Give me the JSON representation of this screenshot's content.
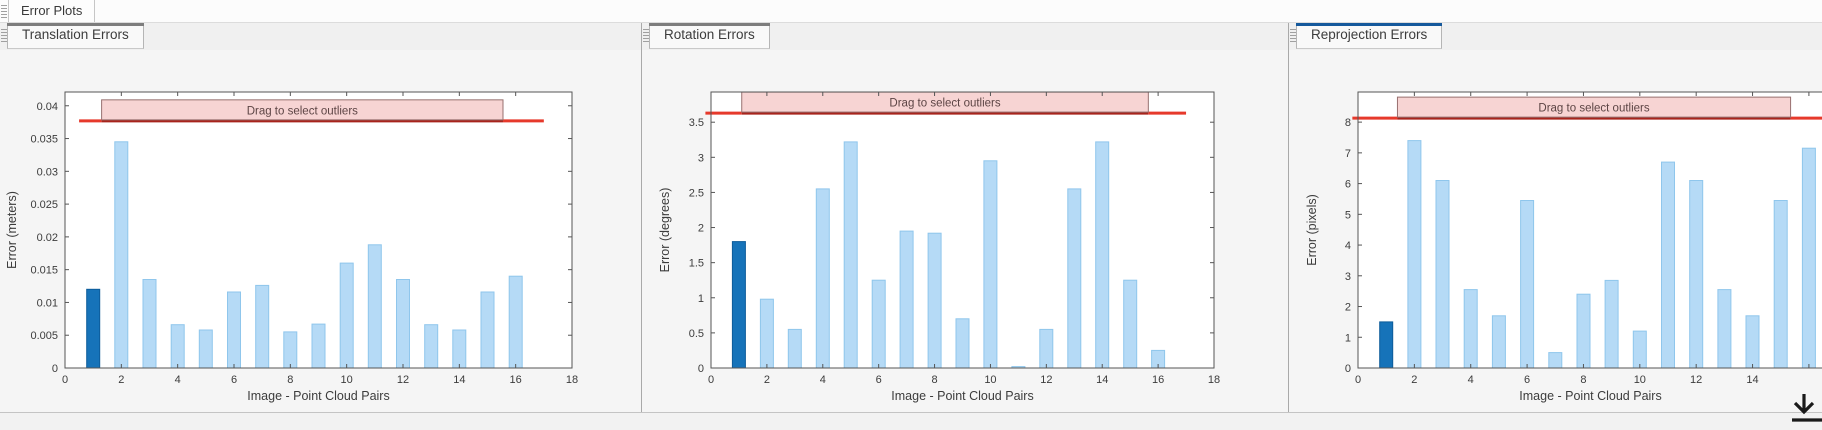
{
  "app": {
    "top_tab_label": "Error Plots",
    "drag_overlay_label": "Drag to select outliers",
    "xlabel": "Image - Point Cloud Pairs"
  },
  "colors": {
    "light_bar": "#b5daf6",
    "light_bar_edge": "#8fc6ec",
    "dark_bar": "#1673b9",
    "dark_bar_edge": "#0d5c9a",
    "red_line": "#e6392b",
    "red_line_dark": "#a8241c",
    "pink_fill": "#f7d4d3",
    "pink_border": "#97706f",
    "axis": "#555555",
    "tick_text": "#3c3c3c",
    "drag_text": "#5d4545",
    "accent_blue": "#15599c",
    "accent_gray": "#7d7d7d",
    "icon_dark": "#1a1a1a"
  },
  "panels": [
    {
      "tab_label": "Translation Errors",
      "active": false
    },
    {
      "tab_label": "Rotation Errors",
      "active": false
    },
    {
      "tab_label": "Reprojection Errors",
      "active": true
    }
  ],
  "chart_data": [
    {
      "type": "bar",
      "title": "Translation Errors",
      "xlabel": "Image - Point Cloud Pairs",
      "ylabel": "Error (meters)",
      "x": [
        1,
        2,
        3,
        4,
        5,
        6,
        7,
        8,
        9,
        10,
        11,
        12,
        13,
        14,
        15,
        16
      ],
      "values": [
        0.012,
        0.0345,
        0.0135,
        0.0066,
        0.0058,
        0.0116,
        0.0126,
        0.0055,
        0.0067,
        0.016,
        0.0188,
        0.0135,
        0.0066,
        0.0058,
        0.0116,
        0.014
      ],
      "highlight_index": 0,
      "xlim": [
        0,
        18
      ],
      "ylim": [
        0,
        0.0421
      ],
      "xtick_vals": [
        0,
        2,
        4,
        6,
        8,
        10,
        12,
        14,
        16,
        18
      ],
      "xtick_labels": [
        "0",
        "2",
        "4",
        "6",
        "8",
        "10",
        "12",
        "14",
        "16",
        "18"
      ],
      "ytick_vals": [
        0,
        0.005,
        0.01,
        0.015,
        0.02,
        0.025,
        0.03,
        0.035,
        0.04
      ],
      "ytick_labels": [
        "0",
        "0.005",
        "0.01",
        "0.015",
        "0.02",
        "0.025",
        "0.03",
        "0.035",
        "0.04"
      ],
      "threshold": {
        "value": 0.0377,
        "x1": 0.5,
        "x2": 17.0
      },
      "drag_box": {
        "x1": 1.3,
        "x2": 15.55,
        "label": "Drag to select outliers"
      },
      "grid": false,
      "legend": "none"
    },
    {
      "type": "bar",
      "title": "Rotation Errors",
      "xlabel": "Image - Point Cloud Pairs",
      "ylabel": "Error (degrees)",
      "x": [
        1,
        2,
        3,
        4,
        5,
        6,
        7,
        8,
        9,
        10,
        11,
        12,
        13,
        14,
        15,
        16
      ],
      "values": [
        1.8,
        0.98,
        0.55,
        2.55,
        3.22,
        1.25,
        1.95,
        1.92,
        0.7,
        2.95,
        0.02,
        0.55,
        2.55,
        3.22,
        1.25,
        0.25
      ],
      "highlight_index": 0,
      "xlim": [
        0,
        18
      ],
      "ylim": [
        0,
        3.93
      ],
      "xtick_vals": [
        0,
        2,
        4,
        6,
        8,
        10,
        12,
        14,
        16,
        18
      ],
      "xtick_labels": [
        "0",
        "2",
        "4",
        "6",
        "8",
        "10",
        "12",
        "14",
        "16",
        "18"
      ],
      "ytick_vals": [
        0,
        0.5,
        1,
        1.5,
        2,
        2.5,
        3,
        3.5
      ],
      "ytick_labels": [
        "0",
        "0.5",
        "1",
        "1.5",
        "2",
        "2.5",
        "3",
        "3.5"
      ],
      "threshold": {
        "value": 3.63,
        "x1": -0.2,
        "x2": 17.0
      },
      "drag_box": {
        "x1": 1.1,
        "x2": 15.65,
        "label": "Drag to select outliers"
      },
      "grid": false,
      "legend": "none"
    },
    {
      "type": "bar",
      "title": "Reprojection Errors",
      "xlabel": "Image - Point Cloud Pairs",
      "ylabel": "Error (pixels)",
      "x": [
        1,
        2,
        3,
        4,
        5,
        6,
        7,
        8,
        9,
        10,
        11,
        12,
        13,
        14,
        15,
        16
      ],
      "values": [
        1.5,
        7.4,
        6.1,
        2.55,
        1.7,
        5.45,
        0.5,
        2.4,
        2.85,
        1.2,
        6.7,
        6.1,
        2.55,
        1.7,
        5.45,
        7.15
      ],
      "highlight_index": 0,
      "xlim": [
        0,
        16.5
      ],
      "ylim": [
        0,
        8.98
      ],
      "xtick_vals": [
        0,
        2,
        4,
        6,
        8,
        10,
        12,
        14,
        16
      ],
      "xtick_labels": [
        "0",
        "2",
        "4",
        "6",
        "8",
        "10",
        "12",
        "14",
        ""
      ],
      "ytick_vals": [
        0,
        1,
        2,
        3,
        4,
        5,
        6,
        7,
        8
      ],
      "ytick_labels": [
        "0",
        "1",
        "2",
        "3",
        "4",
        "5",
        "6",
        "7",
        "8"
      ],
      "threshold": {
        "value": 8.13,
        "x1": -0.2,
        "x2": 16.5
      },
      "drag_box": {
        "x1": 1.4,
        "x2": 15.35,
        "label": "Drag to select outliers"
      },
      "grid": false,
      "legend": "none"
    }
  ]
}
